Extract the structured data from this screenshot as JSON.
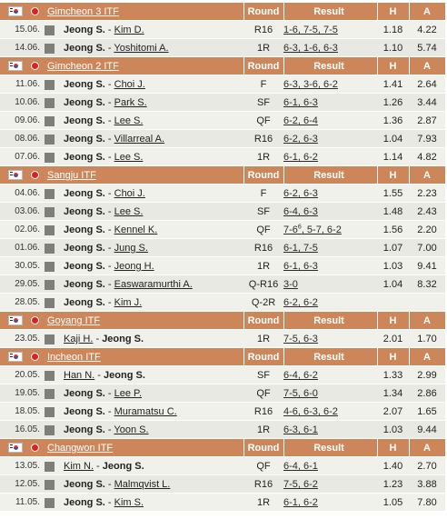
{
  "headers": {
    "round": "Round",
    "result": "Result",
    "h": "H",
    "a": "A"
  },
  "tournaments": [
    {
      "name": "Gimcheon 3 ITF",
      "matches": [
        {
          "date": "15.06.",
          "home": "Jeong S.",
          "away": "Kim D.",
          "bold": "home",
          "round": "R16",
          "result": "1-6, 7-5, 7-5",
          "h": "1.18",
          "a": "4.22"
        },
        {
          "date": "14.06.",
          "home": "Jeong S.",
          "away": "Yoshitomi A.",
          "bold": "home",
          "round": "1R",
          "result": "6-3, 1-6, 6-3",
          "h": "1.10",
          "a": "5.74"
        }
      ]
    },
    {
      "name": "Gimcheon 2 ITF",
      "matches": [
        {
          "date": "11.06.",
          "home": "Jeong S.",
          "away": "Choi J.",
          "bold": "home",
          "round": "F",
          "result": "6-3, 3-6, 6-2",
          "h": "1.41",
          "a": "2.64"
        },
        {
          "date": "10.06.",
          "home": "Jeong S.",
          "away": "Park S.",
          "bold": "home",
          "round": "SF",
          "result": "6-1, 6-3",
          "h": "1.26",
          "a": "3.44"
        },
        {
          "date": "09.06.",
          "home": "Jeong S.",
          "away": "Lee S.",
          "bold": "home",
          "round": "QF",
          "result": "6-2, 6-4",
          "h": "1.36",
          "a": "2.87"
        },
        {
          "date": "08.06.",
          "home": "Jeong S.",
          "away": "Villarreal A.",
          "bold": "home",
          "round": "R16",
          "result": "6-2, 6-3",
          "h": "1.04",
          "a": "7.93"
        },
        {
          "date": "07.06.",
          "home": "Jeong S.",
          "away": "Lee S.",
          "bold": "home",
          "round": "1R",
          "result": "6-1, 6-2",
          "h": "1.14",
          "a": "4.82"
        }
      ]
    },
    {
      "name": "Sangju ITF",
      "matches": [
        {
          "date": "04.06.",
          "home": "Jeong S.",
          "away": "Choi J.",
          "bold": "home",
          "round": "F",
          "result": "6-2, 6-3",
          "h": "1.55",
          "a": "2.23"
        },
        {
          "date": "03.06.",
          "home": "Jeong S.",
          "away": "Lee S.",
          "bold": "home",
          "round": "SF",
          "result": "6-4, 6-3",
          "h": "1.48",
          "a": "2.43"
        },
        {
          "date": "02.06.",
          "home": "Jeong S.",
          "away": "Kennel K.",
          "bold": "home",
          "round": "QF",
          "result": "7-6",
          "result_sup": "6",
          "result_rest": ", 5-7, 6-2",
          "h": "1.56",
          "a": "2.20"
        },
        {
          "date": "01.06.",
          "home": "Jeong S.",
          "away": "Jung S.",
          "bold": "home",
          "round": "R16",
          "result": "6-1, 7-5",
          "h": "1.07",
          "a": "7.00"
        },
        {
          "date": "30.05.",
          "home": "Jeong S.",
          "away": "Jeong H.",
          "bold": "home",
          "round": "1R",
          "result": "6-1, 6-3",
          "h": "1.03",
          "a": "9.41"
        },
        {
          "date": "29.05.",
          "home": "Jeong S.",
          "away": "Easwaramurthi A.",
          "bold": "home",
          "round": "Q-R16",
          "result": "3-0",
          "h": "1.04",
          "a": "8.32"
        },
        {
          "date": "28.05.",
          "home": "Jeong S.",
          "away": "Kim J.",
          "bold": "home",
          "round": "Q-2R",
          "result": "6-2, 6-2",
          "h": "",
          "a": ""
        }
      ]
    },
    {
      "name": "Goyang ITF",
      "matches": [
        {
          "date": "23.05.",
          "home": "Kaji H.",
          "away": "Jeong S.",
          "bold": "away",
          "round": "1R",
          "result": "7-5, 6-3",
          "h": "2.01",
          "a": "1.70"
        }
      ]
    },
    {
      "name": "Incheon ITF",
      "matches": [
        {
          "date": "20.05.",
          "home": "Han N.",
          "away": "Jeong S.",
          "bold": "away",
          "round": "SF",
          "result": "6-4, 6-2",
          "h": "1.33",
          "a": "2.99"
        },
        {
          "date": "19.05.",
          "home": "Jeong S.",
          "away": "Lee P.",
          "bold": "home",
          "round": "QF",
          "result": "7-5, 6-0",
          "h": "1.34",
          "a": "2.86"
        },
        {
          "date": "18.05.",
          "home": "Jeong S.",
          "away": "Muramatsu C.",
          "bold": "home",
          "round": "R16",
          "result": "4-6, 6-3, 6-2",
          "h": "2.07",
          "a": "1.65"
        },
        {
          "date": "16.05.",
          "home": "Jeong S.",
          "away": "Yoon S.",
          "bold": "home",
          "round": "1R",
          "result": "6-3, 6-1",
          "h": "1.03",
          "a": "9.44"
        }
      ]
    },
    {
      "name": "Changwon ITF",
      "matches": [
        {
          "date": "13.05.",
          "home": "Kim N.",
          "away": "Jeong S.",
          "bold": "away",
          "round": "QF",
          "result": "6-4, 6-1",
          "h": "1.40",
          "a": "2.70"
        },
        {
          "date": "12.05.",
          "home": "Jeong S.",
          "away": "Malmqvist L.",
          "bold": "home",
          "round": "R16",
          "result": "7-5, 6-2",
          "h": "1.23",
          "a": "3.88"
        },
        {
          "date": "11.05.",
          "home": "Jeong S.",
          "away": "Kim S.",
          "bold": "home",
          "round": "1R",
          "result": "6-1, 6-2",
          "h": "1.05",
          "a": "7.80"
        }
      ]
    }
  ]
}
